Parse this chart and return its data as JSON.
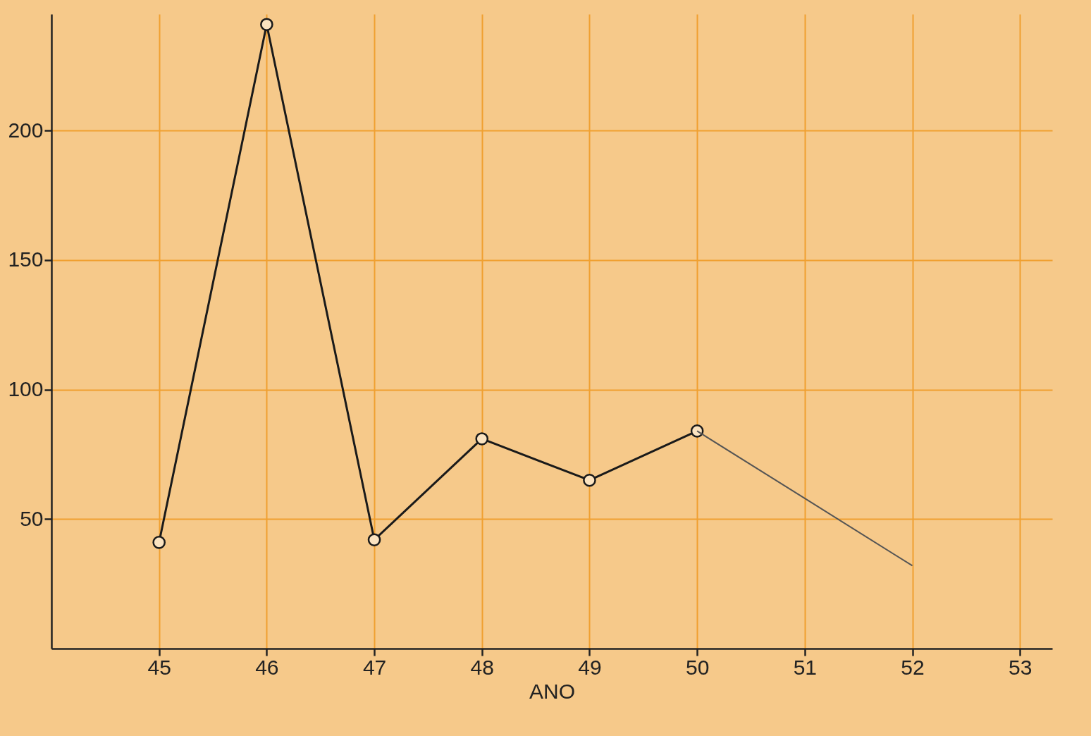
{
  "chart_data": {
    "type": "line",
    "xlabel": "ANO",
    "xlim": [
      44,
      53.3
    ],
    "xticks": [
      45,
      46,
      47,
      48,
      49,
      50,
      51,
      52,
      53
    ],
    "ylim": [
      0,
      245
    ],
    "yticks": [
      50,
      100,
      150,
      200
    ],
    "grid": true,
    "series": [
      {
        "color": "#1a1a1a",
        "x": [
          45,
          46,
          47,
          48,
          49,
          50
        ],
        "values": [
          41,
          241,
          42,
          81,
          65,
          84
        ],
        "marker": "circle",
        "line_style": "solid"
      },
      {
        "color": "#555555",
        "x": [
          50,
          51,
          52
        ],
        "values": [
          84,
          58,
          32
        ],
        "marker": "none",
        "line_style": "solid"
      }
    ]
  }
}
